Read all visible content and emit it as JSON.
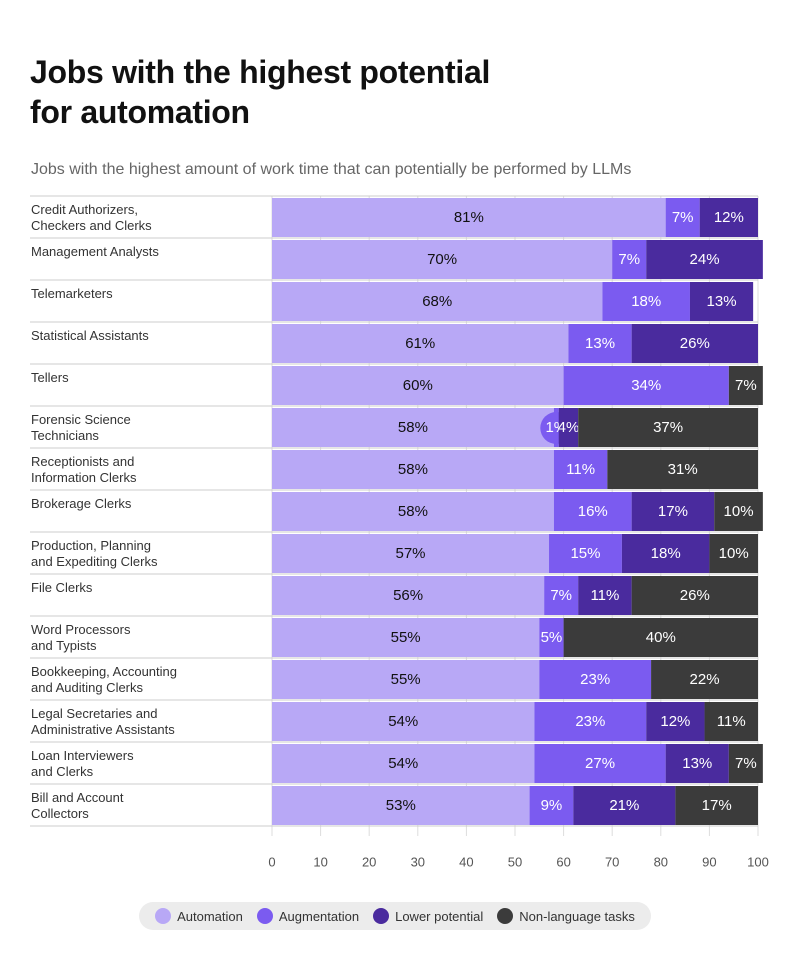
{
  "chart_data": {
    "type": "stacked-bar-horizontal",
    "title": "Jobs with the highest potential\nfor automation",
    "subtitle": "Jobs with the highest amount of work time that can potentially be performed by LLMs",
    "categories": [
      "Credit Authorizers,\nCheckers and Clerks",
      "Management Analysts",
      "Telemarketers",
      "Statistical Assistants",
      "Tellers",
      "Forensic Science\nTechnicians",
      "Receptionists and\nInformation Clerks",
      "Brokerage Clerks",
      "Production, Planning\nand Expediting Clerks",
      "File Clerks",
      "Word Processors\nand Typists",
      "Bookkeeping, Accounting\nand Auditing Clerks",
      "Legal Secretaries and\nAdministrative Assistants",
      "Loan Interviewers\nand Clerks",
      "Bill and Account\nCollectors"
    ],
    "series": [
      {
        "name": "Automation",
        "color": "#b8a8f6",
        "values": [
          81,
          70,
          68,
          61,
          60,
          58,
          58,
          58,
          57,
          56,
          55,
          55,
          54,
          54,
          53
        ],
        "value_labels": [
          "81%",
          "70%",
          "68%",
          "61%",
          "60%",
          "58%",
          "58%",
          "58%",
          "57%",
          "56%",
          "55%",
          "55%",
          "54%",
          "54%",
          "53%"
        ]
      },
      {
        "name": "Augmentation",
        "color": "#7b5bf0",
        "values": [
          7,
          7,
          18,
          13,
          34,
          1,
          11,
          16,
          15,
          7,
          5,
          23,
          23,
          27,
          9
        ],
        "value_labels": [
          "7%",
          "7%",
          "18%",
          "13%",
          "34%",
          "1%",
          "11%",
          "16%",
          "15%",
          "7%",
          "5%",
          "23%",
          "23%",
          "27%",
          "9%"
        ]
      },
      {
        "name": "Lower potential",
        "color": "#4a2b9e",
        "values": [
          12,
          24,
          13,
          26,
          null,
          4,
          null,
          17,
          18,
          11,
          null,
          null,
          12,
          13,
          21
        ],
        "value_labels": [
          "12%",
          "24%",
          "13%",
          "26%",
          null,
          "4%",
          null,
          "17%",
          "18%",
          "11%",
          null,
          null,
          "12%",
          "13%",
          "21%"
        ]
      },
      {
        "name": "Non-language tasks",
        "color": "#3b3b3b",
        "values": [
          null,
          null,
          null,
          null,
          7,
          37,
          31,
          10,
          10,
          26,
          40,
          22,
          11,
          7,
          17
        ],
        "value_labels": [
          null,
          null,
          null,
          null,
          "7%",
          "37%",
          "31%",
          "10%",
          "10%",
          "26%",
          "40%",
          "22%",
          "11%",
          "7%",
          "17%"
        ]
      }
    ],
    "xlim": [
      0,
      100
    ],
    "xticks": [
      0,
      10,
      20,
      30,
      40,
      50,
      60,
      70,
      80,
      90,
      100
    ],
    "grid": true
  }
}
